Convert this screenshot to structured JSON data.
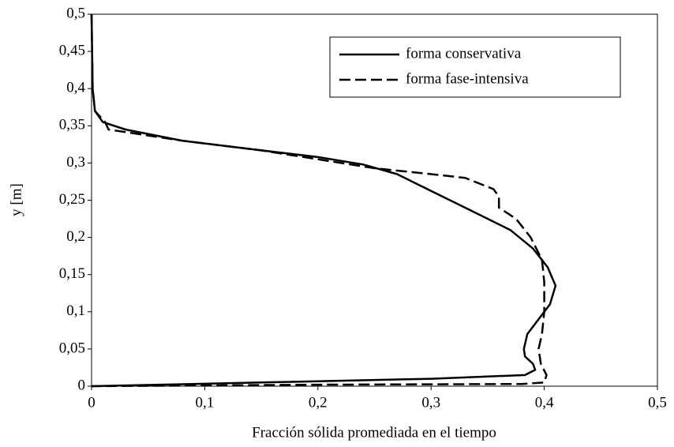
{
  "chart_data": {
    "type": "line",
    "x_label": "Fracción sólida promediada en el tiempo",
    "y_label": "y [m]",
    "xlim": [
      0,
      0.5
    ],
    "ylim": [
      0,
      0.5
    ],
    "xticks": [
      0,
      {
        "value": 0.1,
        "label": "0,1"
      },
      {
        "value": 0.2,
        "label": "0,2"
      },
      {
        "value": 0.3,
        "label": "0,3"
      },
      {
        "value": 0.4,
        "label": "0,4"
      },
      {
        "value": 0.5,
        "label": "0,5"
      }
    ],
    "yticks": [
      0,
      {
        "value": 0.05,
        "label": "0,05"
      },
      {
        "value": 0.1,
        "label": "0,1"
      },
      {
        "value": 0.15,
        "label": "0,15"
      },
      {
        "value": 0.2,
        "label": "0,2"
      },
      {
        "value": 0.25,
        "label": "0,25"
      },
      {
        "value": 0.3,
        "label": "0,3"
      },
      {
        "value": 0.35,
        "label": "0,35"
      },
      {
        "value": 0.4,
        "label": "0,4"
      },
      {
        "value": 0.45,
        "label": "0,45"
      },
      {
        "value": 0.5,
        "label": "0,5"
      }
    ],
    "legend": "upper right",
    "series": [
      {
        "name": "forma conservativa",
        "color": "#000000",
        "dash": "solid",
        "x": [
          0,
          0.001,
          0.003,
          0.01,
          0.03,
          0.08,
          0.15,
          0.2,
          0.24,
          0.27,
          0.29,
          0.33,
          0.37,
          0.39,
          0.403,
          0.41,
          0.405,
          0.395,
          0.385,
          0.382,
          0.383,
          0.39,
          0.392,
          0.383,
          0.3,
          0.15,
          0
        ],
        "values": [
          0.5,
          0.4,
          0.37,
          0.355,
          0.345,
          0.33,
          0.317,
          0.308,
          0.298,
          0.285,
          0.27,
          0.24,
          0.21,
          0.185,
          0.16,
          0.135,
          0.11,
          0.09,
          0.07,
          0.05,
          0.04,
          0.03,
          0.022,
          0.015,
          0.01,
          0.005,
          0
        ]
      },
      {
        "name": "forma fase-intensiva",
        "color": "#000000",
        "dash": "dashed",
        "x": [
          0,
          0.001,
          0.003,
          0.012,
          0.015,
          0.08,
          0.15,
          0.2,
          0.25,
          0.3,
          0.33,
          0.355,
          0.36,
          0.36,
          0.375,
          0.388,
          0.398,
          0.4,
          0.4,
          0.398,
          0.395,
          0.397,
          0.402,
          0.4,
          0.38,
          0.2,
          0
        ],
        "values": [
          0.5,
          0.4,
          0.37,
          0.355,
          0.345,
          0.33,
          0.317,
          0.305,
          0.293,
          0.285,
          0.28,
          0.265,
          0.255,
          0.24,
          0.225,
          0.2,
          0.17,
          0.14,
          0.1,
          0.07,
          0.05,
          0.03,
          0.015,
          0.005,
          0.003,
          0.002,
          0
        ]
      }
    ]
  }
}
